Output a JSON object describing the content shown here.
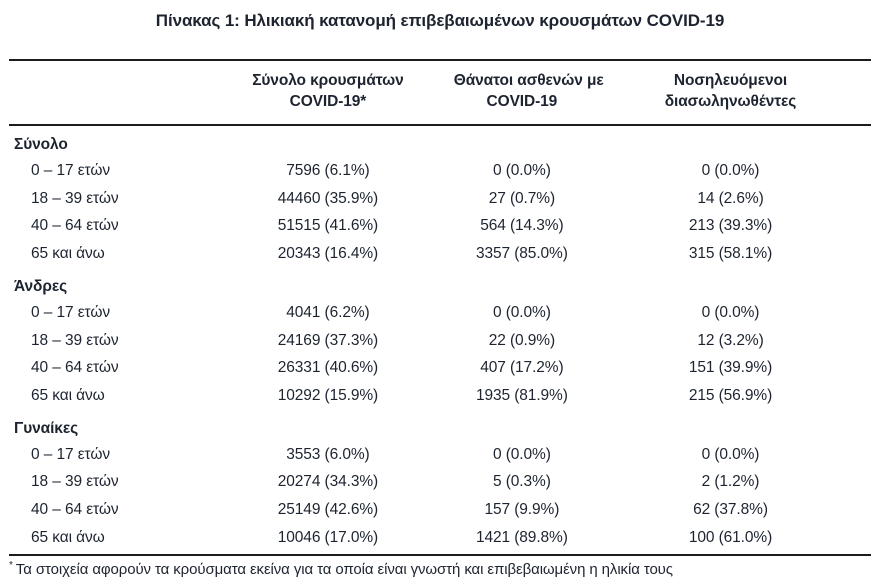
{
  "title": "Πίνακας 1: Ηλικιακή κατανομή επιβεβαιωμένων κρουσμάτων COVID-19",
  "table": {
    "column_headers": [
      {
        "line1": "Σύνολο κρουσμάτων",
        "line2": "COVID-19*"
      },
      {
        "line1": "Θάνατοι ασθενών με",
        "line2": "COVID-19"
      },
      {
        "line1": "Νοσηλευόμενοι",
        "line2": "διασωληνωθέντες"
      }
    ],
    "groups": [
      {
        "label": "Σύνολο",
        "rows": [
          {
            "label": "0 – 17 ετών",
            "cases": "7596 (6.1%)",
            "deaths": "0 (0.0%)",
            "intubated": "0 (0.0%)"
          },
          {
            "label": "18 – 39 ετών",
            "cases": "44460 (35.9%)",
            "deaths": "27 (0.7%)",
            "intubated": "14 (2.6%)"
          },
          {
            "label": "40 – 64 ετών",
            "cases": "51515 (41.6%)",
            "deaths": "564 (14.3%)",
            "intubated": "213 (39.3%)"
          },
          {
            "label": "65 και άνω",
            "cases": "20343 (16.4%)",
            "deaths": "3357 (85.0%)",
            "intubated": "315 (58.1%)"
          }
        ]
      },
      {
        "label": "Άνδρες",
        "rows": [
          {
            "label": "0 – 17 ετών",
            "cases": "4041 (6.2%)",
            "deaths": "0 (0.0%)",
            "intubated": "0 (0.0%)"
          },
          {
            "label": "18 – 39 ετών",
            "cases": "24169 (37.3%)",
            "deaths": "22 (0.9%)",
            "intubated": "12 (3.2%)"
          },
          {
            "label": "40 – 64 ετών",
            "cases": "26331 (40.6%)",
            "deaths": "407 (17.2%)",
            "intubated": "151 (39.9%)"
          },
          {
            "label": "65 και άνω",
            "cases": "10292 (15.9%)",
            "deaths": "1935 (81.9%)",
            "intubated": "215 (56.9%)"
          }
        ]
      },
      {
        "label": "Γυναίκες",
        "rows": [
          {
            "label": "0 – 17 ετών",
            "cases": "3553 (6.0%)",
            "deaths": "0 (0.0%)",
            "intubated": "0 (0.0%)"
          },
          {
            "label": "18 – 39 ετών",
            "cases": "20274 (34.3%)",
            "deaths": "5 (0.3%)",
            "intubated": "2 (1.2%)"
          },
          {
            "label": "40 – 64 ετών",
            "cases": "25149 (42.6%)",
            "deaths": "157 (9.9%)",
            "intubated": "62 (37.8%)"
          },
          {
            "label": "65 και άνω",
            "cases": "10046 (17.0%)",
            "deaths": "1421 (89.8%)",
            "intubated": "100 (61.0%)"
          }
        ]
      }
    ]
  },
  "footnote": {
    "marker": "*",
    "text": "Τα στοιχεία αφορούν τα κρούσματα εκείνα για τα οποία είναι γνωστή και επιβεβαιωμένη η ηλικία τους"
  },
  "colors": {
    "text": "#1d2430",
    "rule": "#1c1c1c",
    "background": "#ffffff"
  }
}
